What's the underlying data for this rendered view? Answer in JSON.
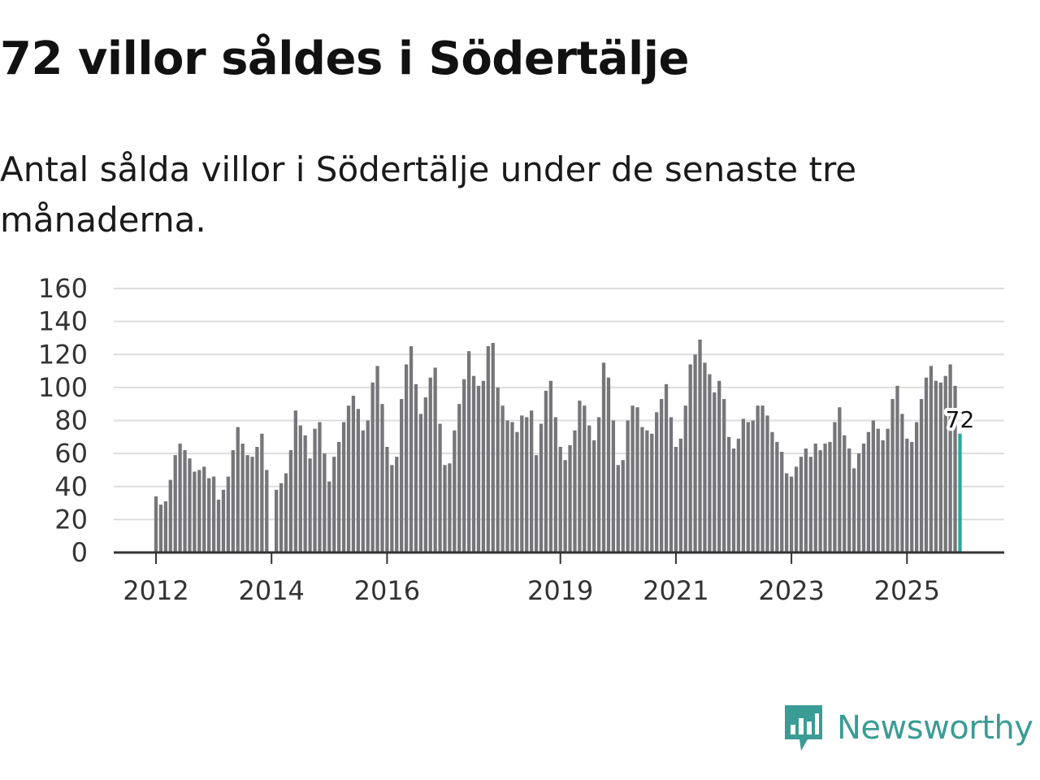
{
  "title": "72 villor såldes i Södertälje",
  "subtitle": "Antal sålda villor i Södertälje under de senaste tre månaderna.",
  "brand": {
    "name": "Newsworthy",
    "icon": "newsworthy-logo-icon"
  },
  "colors": {
    "bar": "#76767a",
    "highlight": "#2aa79b",
    "grid": "#dddddd",
    "axis": "#333333",
    "brand": "#3a9c94"
  },
  "chart_data": {
    "type": "bar",
    "title": "72 villor såldes i Södertälje",
    "xlabel": "",
    "ylabel": "",
    "ylim": [
      0,
      160
    ],
    "yticks": [
      0,
      20,
      40,
      60,
      80,
      100,
      120,
      140,
      160
    ],
    "grid": true,
    "x_ticks": [
      {
        "label": "2012",
        "index": 0
      },
      {
        "label": "2014",
        "index": 24
      },
      {
        "label": "2016",
        "index": 48
      },
      {
        "label": "2019",
        "index": 84
      },
      {
        "label": "2021",
        "index": 108
      },
      {
        "label": "2023",
        "index": 132
      },
      {
        "label": "2025",
        "index": 156
      }
    ],
    "annotation": {
      "index": 167,
      "text": "72"
    },
    "highlight_index": 167,
    "values": [
      34,
      29,
      31,
      44,
      59,
      66,
      62,
      57,
      49,
      50,
      52,
      45,
      46,
      32,
      38,
      46,
      62,
      76,
      66,
      59,
      58,
      64,
      72,
      50,
      null,
      38,
      42,
      48,
      62,
      86,
      77,
      71,
      57,
      75,
      79,
      60,
      43,
      58,
      67,
      79,
      89,
      95,
      87,
      74,
      80,
      103,
      113,
      90,
      64,
      53,
      58,
      93,
      114,
      125,
      102,
      84,
      94,
      106,
      112,
      78,
      53,
      54,
      74,
      90,
      105,
      122,
      107,
      101,
      104,
      125,
      127,
      100,
      89,
      80,
      79,
      73,
      83,
      82,
      86,
      59,
      78,
      98,
      104,
      82,
      64,
      56,
      65,
      74,
      92,
      89,
      77,
      68,
      82,
      115,
      106,
      80,
      53,
      56,
      80,
      89,
      88,
      76,
      74,
      72,
      85,
      93,
      102,
      82,
      64,
      69,
      89,
      114,
      120,
      129,
      115,
      108,
      97,
      104,
      93,
      70,
      63,
      69,
      81,
      79,
      80,
      89,
      89,
      83,
      73,
      67,
      61,
      48,
      46,
      52,
      58,
      63,
      58,
      66,
      62,
      66,
      67,
      79,
      88,
      71,
      63,
      51,
      60,
      66,
      73,
      80,
      75,
      68,
      75,
      93,
      101,
      84,
      69,
      67,
      79,
      93,
      106,
      113,
      104,
      103,
      107,
      114,
      101,
      72
    ]
  }
}
